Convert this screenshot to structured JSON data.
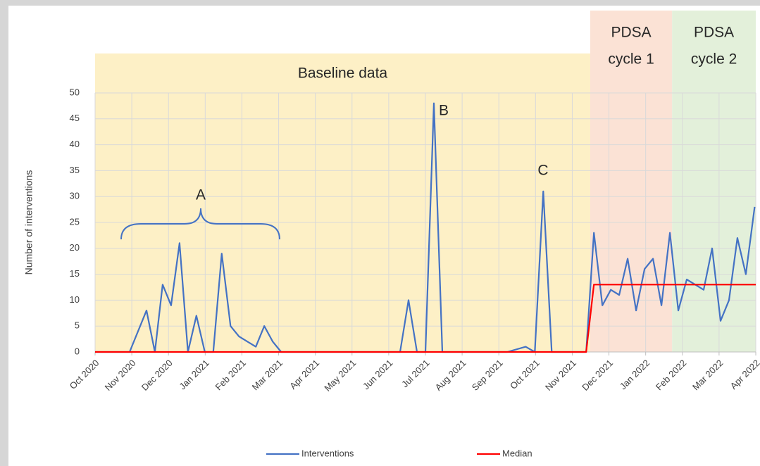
{
  "chart_data": {
    "type": "line",
    "ylabel": "Number of interventions",
    "xlim": [
      0,
      18
    ],
    "xticks": [
      {
        "value": 0,
        "label": "Oct 2020"
      },
      {
        "value": 1,
        "label": "Nov 2020"
      },
      {
        "value": 2,
        "label": "Dec 2020"
      },
      {
        "value": 3,
        "label": "Jan 2021"
      },
      {
        "value": 4,
        "label": "Feb 2021"
      },
      {
        "value": 5,
        "label": "Mar 2021"
      },
      {
        "value": 6,
        "label": "Apr 2021"
      },
      {
        "value": 7,
        "label": "May 2021"
      },
      {
        "value": 8,
        "label": "Jun 2021"
      },
      {
        "value": 9,
        "label": "Jul 2021"
      },
      {
        "value": 10,
        "label": "Aug 2021"
      },
      {
        "value": 11,
        "label": "Sep 2021"
      },
      {
        "value": 12,
        "label": "Oct 2021"
      },
      {
        "value": 13,
        "label": "Nov 2021"
      },
      {
        "value": 14,
        "label": "Dec 2021"
      },
      {
        "value": 15,
        "label": "Jan 2022"
      },
      {
        "value": 16,
        "label": "Feb 2022"
      },
      {
        "value": 17,
        "label": "Mar 2022"
      },
      {
        "value": 18,
        "label": "Apr 2022"
      }
    ],
    "ylim": [
      0,
      50
    ],
    "yticks": [
      0,
      5,
      10,
      15,
      20,
      25,
      30,
      35,
      40,
      45,
      50
    ],
    "grid": true,
    "legend": "bottom",
    "regions": [
      {
        "label": [
          "Baseline data"
        ],
        "start": 0,
        "end": 13.49,
        "color": "#fdf0c6"
      },
      {
        "label": [
          "PDSA",
          "cycle 1"
        ],
        "start": 13.49,
        "end": 15.72,
        "color": "#fbe2d5"
      },
      {
        "label": [
          "PDSA",
          "cycle 2"
        ],
        "start": 15.72,
        "end": 18,
        "color": "#e3f0da"
      }
    ],
    "annotations": [
      "A",
      "B",
      "C"
    ],
    "series": [
      {
        "name": "Interventions",
        "color": "#4472c4",
        "x": [
          0,
          0.94,
          1.4,
          1.63,
          1.84,
          2.07,
          2.3,
          2.53,
          2.76,
          2.99,
          3.22,
          3.45,
          3.69,
          3.92,
          4.15,
          4.38,
          4.61,
          4.84,
          5.07,
          8.31,
          8.54,
          8.77,
          9.0,
          9.23,
          9.46,
          11.23,
          11.73,
          11.98,
          12.21,
          12.44,
          13.38,
          13.59,
          13.82,
          14.05,
          14.28,
          14.51,
          14.74,
          14.97,
          15.2,
          15.43,
          15.66,
          15.89,
          16.12,
          16.35,
          16.58,
          16.81,
          17.04,
          17.27,
          17.5,
          17.73,
          17.97
        ],
        "values": [
          0,
          0,
          8,
          0,
          13,
          9,
          21,
          0,
          7,
          0,
          0,
          19,
          5,
          3,
          2,
          1,
          5,
          2,
          0,
          0,
          10,
          0,
          0,
          48,
          0,
          0,
          1,
          0,
          31,
          0,
          0,
          23,
          9,
          12,
          11,
          18,
          8,
          16,
          18,
          9,
          23,
          8,
          14,
          13,
          12,
          20,
          6,
          10,
          22,
          15,
          28
        ]
      },
      {
        "name": "Median",
        "color": "#ff0000",
        "x": [
          0,
          13.38,
          13.59,
          18
        ],
        "values": [
          0,
          0,
          13,
          13
        ]
      }
    ]
  }
}
